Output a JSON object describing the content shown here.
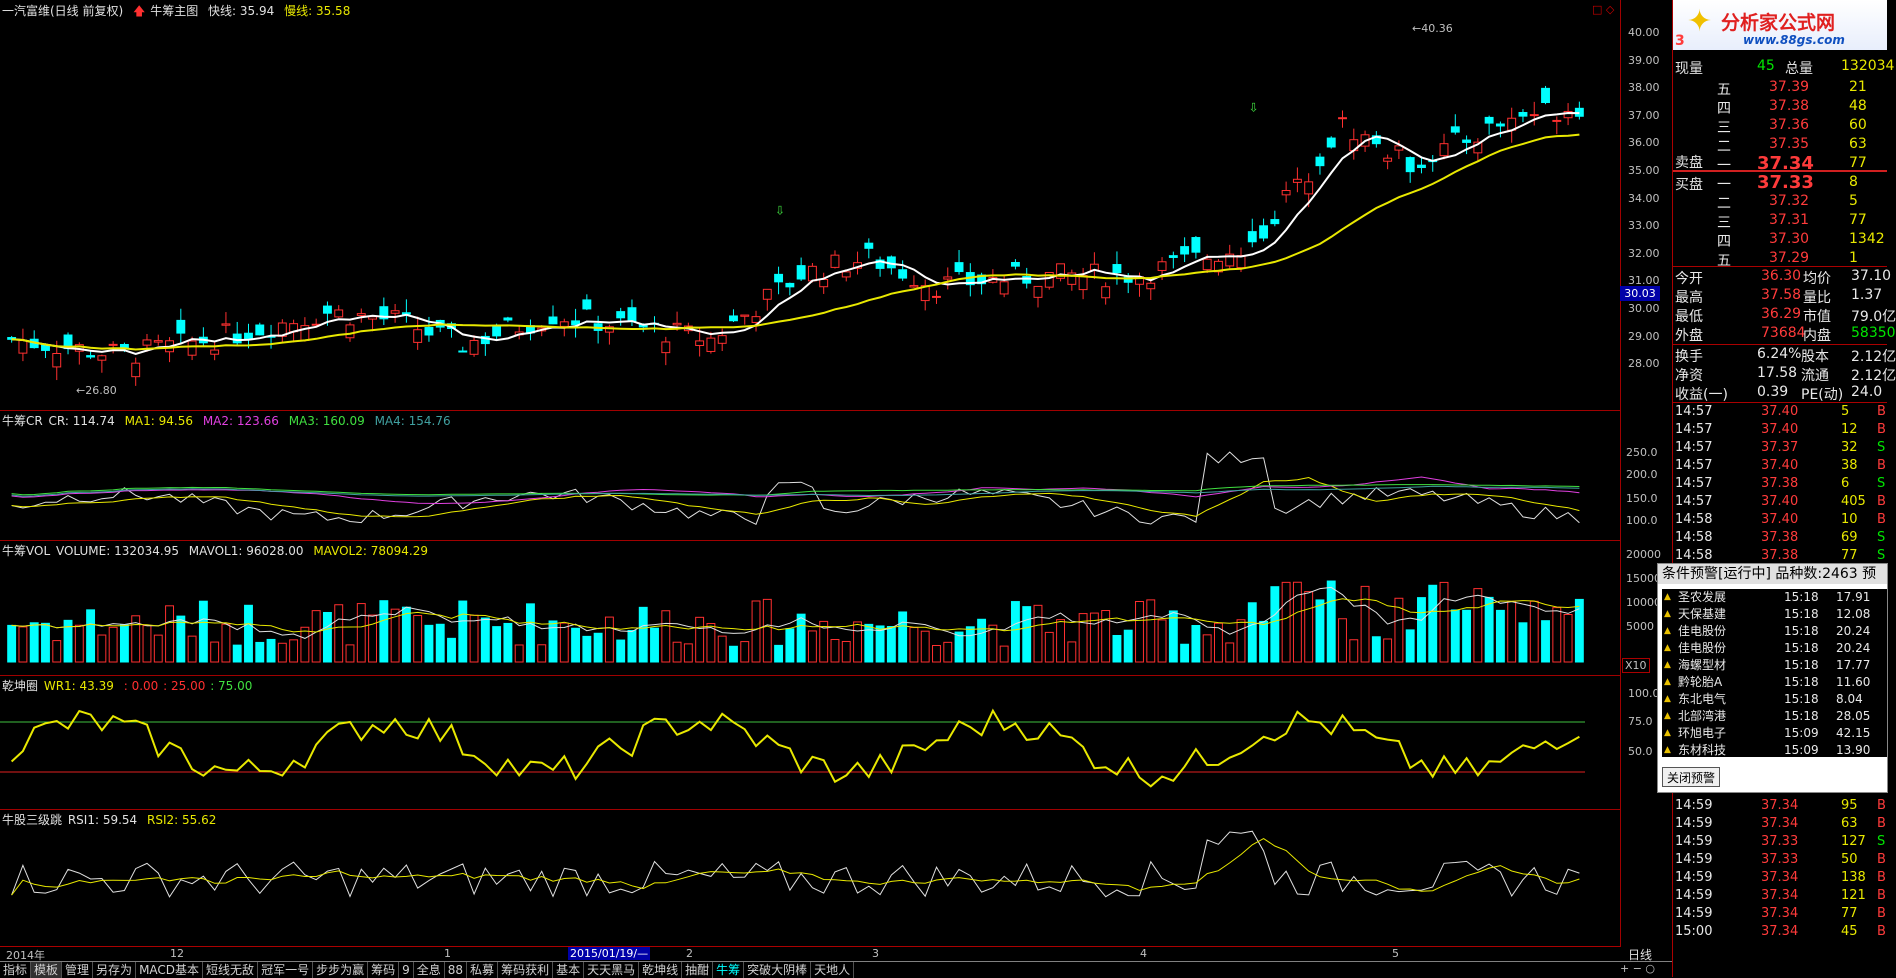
{
  "main_header": {
    "stock": "一汽富维(日线 前复权)",
    "indicator": "牛筹主图",
    "fast_label": "快线:",
    "fast_value": "35.94",
    "slow_label": "慢线:",
    "slow_value": "35.58"
  },
  "price_axis": [
    "40.00",
    "39.00",
    "38.00",
    "37.00",
    "36.00",
    "35.00",
    "34.00",
    "33.00",
    "32.00",
    "31.00",
    "30.00",
    "29.00",
    "28.00"
  ],
  "price_marker": "30.03",
  "annotations": {
    "high": "40.36",
    "low": "26.80"
  },
  "cr_header": {
    "name": "牛筹CR",
    "cr": "CR: 114.74",
    "ma1": "MA1: 94.56",
    "ma2": "MA2: 123.66",
    "ma3": "MA3: 160.09",
    "ma4": "MA4: 154.76"
  },
  "cr_axis": [
    "250.0",
    "200.0",
    "150.0",
    "100.0"
  ],
  "vol_header": {
    "name": "牛筹VOL",
    "volume": "VOLUME: 132034.95",
    "mavol1": "MAVOL1: 96028.00",
    "mavol2": "MAVOL2: 78094.29"
  },
  "vol_axis": [
    "20000",
    "15000",
    "10000",
    "5000"
  ],
  "vol_unit": "X10",
  "wr_header": {
    "name": "乾坤圈",
    "wr": "WR1: 43.39",
    "c1": ": 0.00",
    "c2": ": 25.00",
    "c3": ": 75.00"
  },
  "wr_axis": [
    "100.0",
    "75.0",
    "50.0"
  ],
  "rsi_header": {
    "name": "牛股三级跳",
    "rsi1": "RSI1: 59.54",
    "rsi2": "RSI2: 55.62"
  },
  "date_axis": [
    {
      "label": "2014年"
    },
    {
      "label": "12"
    },
    {
      "label": "1"
    },
    {
      "label": "2015/01/19/—"
    },
    {
      "label": "2"
    },
    {
      "label": "3"
    },
    {
      "label": "4"
    },
    {
      "label": "5"
    }
  ],
  "bottom_tabs": [
    "指标",
    "模板",
    "管理",
    "另存为",
    "MACD基本",
    "短线无敌",
    "冠军一号",
    "步步为赢",
    "筹码",
    "9",
    "全息",
    "88",
    "私募",
    "筹码获利",
    "基本",
    "天天黑马",
    "乾坤线",
    "抽酣",
    "牛筹",
    "突破大阴棒",
    "天地人"
  ],
  "period": "日线",
  "right_panel": {
    "logo_text": "分析家公式网",
    "logo_url": "www.88gs.com",
    "header_num": "3",
    "xianliang_label": "现量",
    "xianliang": "45",
    "zongliang_label": "总量",
    "zongliang": "132034",
    "sell": [
      {
        "level": "五",
        "price": "37.39",
        "vol": "21"
      },
      {
        "level": "四",
        "price": "37.38",
        "vol": "48"
      },
      {
        "level": "三",
        "price": "37.36",
        "vol": "60"
      },
      {
        "level": "二",
        "price": "37.35",
        "vol": "63"
      },
      {
        "level": "一",
        "price": "37.34",
        "vol": "77"
      }
    ],
    "sell_label": "卖盘",
    "buy_label": "买盘",
    "buy": [
      {
        "level": "一",
        "price": "37.33",
        "vol": "8"
      },
      {
        "level": "二",
        "price": "37.32",
        "vol": "5"
      },
      {
        "level": "三",
        "price": "37.31",
        "vol": "77"
      },
      {
        "level": "四",
        "price": "37.30",
        "vol": "1342"
      },
      {
        "level": "五",
        "price": "37.29",
        "vol": "1"
      }
    ],
    "stats": [
      {
        "l1": "今开",
        "v1": "36.30",
        "l2": "均价",
        "v2": "37.10"
      },
      {
        "l1": "最高",
        "v1": "37.58",
        "l2": "量比",
        "v2": "1.37"
      },
      {
        "l1": "最低",
        "v1": "36.29",
        "l2": "市值",
        "v2": "79.0亿"
      },
      {
        "l1": "外盘",
        "v1": "73684",
        "l2": "内盘",
        "v2": "58350"
      }
    ],
    "stats2": [
      {
        "l1": "换手",
        "v1": "6.24%",
        "l2": "股本",
        "v2": "2.12亿"
      },
      {
        "l1": "净资",
        "v1": "17.58",
        "l2": "流通",
        "v2": "2.12亿"
      },
      {
        "l1": "收益(一)",
        "v1": "0.39",
        "l2": "PE(动)",
        "v2": "24.0"
      }
    ],
    "ticks": [
      {
        "t": "14:57",
        "p": "37.40",
        "v": "5",
        "f": "B"
      },
      {
        "t": "14:57",
        "p": "37.40",
        "v": "12",
        "f": "B"
      },
      {
        "t": "14:57",
        "p": "37.37",
        "v": "32",
        "f": "S"
      },
      {
        "t": "14:57",
        "p": "37.40",
        "v": "38",
        "f": "B"
      },
      {
        "t": "14:57",
        "p": "37.38",
        "v": "6",
        "f": "S"
      },
      {
        "t": "14:57",
        "p": "37.40",
        "v": "405",
        "f": "B"
      },
      {
        "t": "14:58",
        "p": "37.40",
        "v": "10",
        "f": "B"
      },
      {
        "t": "14:58",
        "p": "37.38",
        "v": "69",
        "f": "S"
      },
      {
        "t": "14:58",
        "p": "37.38",
        "v": "77",
        "f": "S"
      }
    ],
    "ticks2": [
      {
        "t": "14:59",
        "p": "37.34",
        "v": "95",
        "f": "B"
      },
      {
        "t": "14:59",
        "p": "37.34",
        "v": "63",
        "f": "B"
      },
      {
        "t": "14:59",
        "p": "37.33",
        "v": "127",
        "f": "S"
      },
      {
        "t": "14:59",
        "p": "37.33",
        "v": "50",
        "f": "B"
      },
      {
        "t": "14:59",
        "p": "37.34",
        "v": "138",
        "f": "B"
      },
      {
        "t": "14:59",
        "p": "37.34",
        "v": "121",
        "f": "B"
      },
      {
        "t": "14:59",
        "p": "37.34",
        "v": "77",
        "f": "B"
      },
      {
        "t": "15:00",
        "p": "37.34",
        "v": "45",
        "f": "B"
      }
    ]
  },
  "alert": {
    "title": "条件预警[运行中] 品种数:2463 预",
    "items": [
      {
        "name": "圣农发展",
        "time": "15:18",
        "price": "17.91"
      },
      {
        "name": "天保基建",
        "time": "15:18",
        "price": "12.08"
      },
      {
        "name": "佳电股份",
        "time": "15:18",
        "price": "20.24"
      },
      {
        "name": "佳电股份",
        "time": "15:18",
        "price": "20.24"
      },
      {
        "name": "海螺型材",
        "time": "15:18",
        "price": "17.77"
      },
      {
        "name": "黔轮胎A",
        "time": "15:18",
        "price": "11.60"
      },
      {
        "name": "东北电气",
        "time": "15:18",
        "price": "8.04"
      },
      {
        "name": "北部湾港",
        "time": "15:18",
        "price": "28.05"
      },
      {
        "name": "环旭电子",
        "time": "15:09",
        "price": "42.15"
      },
      {
        "name": "东材科技",
        "time": "15:09",
        "price": "13.90"
      }
    ],
    "close_label": "关闭预警"
  }
}
